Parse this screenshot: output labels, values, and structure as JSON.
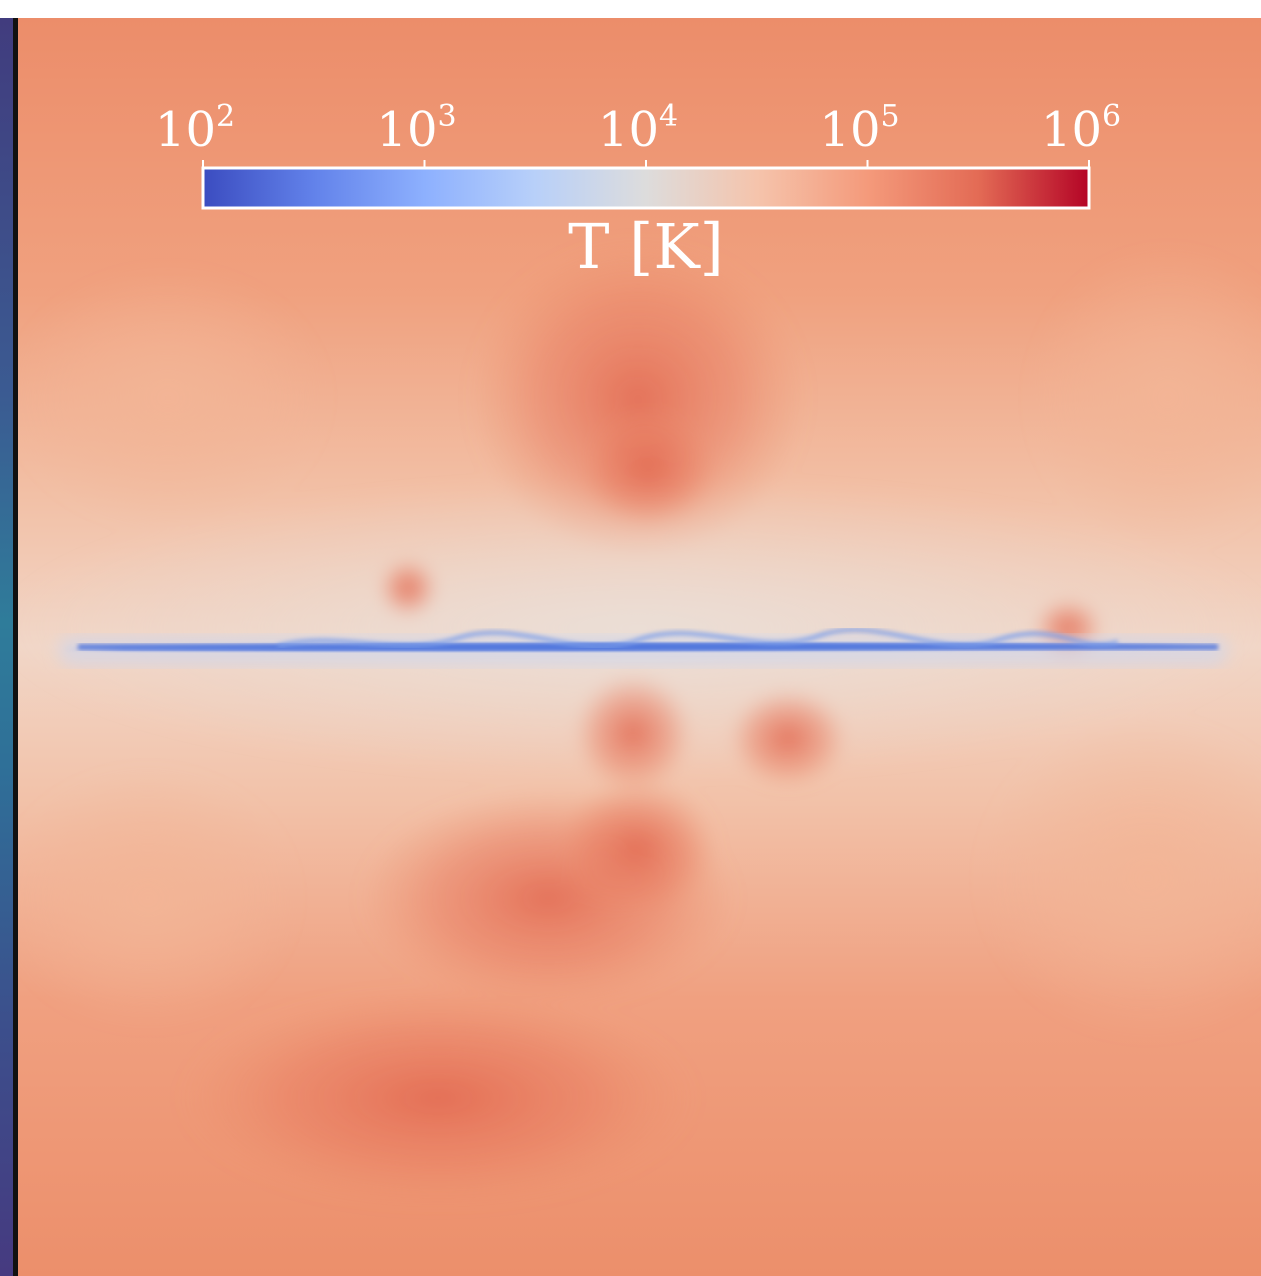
{
  "chart_data": {
    "type": "heatmap",
    "description_of_content": "",
    "colorbar": {
      "label": "T [K]",
      "scale": "log",
      "range": [
        100,
        1000000
      ],
      "colormap": "coolwarm",
      "ticks": [
        {
          "value": 100,
          "base": "10",
          "exponent": "2"
        },
        {
          "value": 1000,
          "base": "10",
          "exponent": "3"
        },
        {
          "value": 10000,
          "base": "10",
          "exponent": "4"
        },
        {
          "value": 100000,
          "base": "10",
          "exponent": "5"
        },
        {
          "value": 1000000,
          "base": "10",
          "exponent": "6"
        }
      ],
      "placement": "top-center"
    },
    "colors": {
      "cold": "#3b4cc0",
      "mid": "#dddddd",
      "warm": "#f4a582",
      "hot": "#b40426"
    }
  }
}
